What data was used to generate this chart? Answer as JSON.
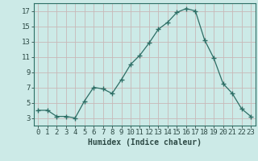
{
  "x": [
    0,
    1,
    2,
    3,
    4,
    5,
    6,
    7,
    8,
    9,
    10,
    11,
    12,
    13,
    14,
    15,
    16,
    17,
    18,
    19,
    20,
    21,
    22,
    23
  ],
  "y": [
    4.0,
    4.0,
    3.2,
    3.2,
    3.0,
    5.2,
    7.0,
    6.8,
    6.2,
    8.0,
    10.0,
    11.2,
    12.8,
    14.6,
    15.5,
    16.8,
    17.3,
    17.0,
    13.2,
    10.8,
    7.5,
    6.2,
    4.2,
    3.2
  ],
  "line_color": "#2d6e65",
  "marker": "+",
  "marker_size": 4,
  "bg_color": "#cceae7",
  "grid_color": "#c8b8b8",
  "xlabel": "Humidex (Indice chaleur)",
  "xlabel_fontsize": 7,
  "tick_fontsize": 6.5,
  "ylim": [
    2,
    18
  ],
  "xlim": [
    -0.5,
    23.5
  ],
  "yticks": [
    3,
    5,
    7,
    9,
    11,
    13,
    15,
    17
  ],
  "xticks": [
    0,
    1,
    2,
    3,
    4,
    5,
    6,
    7,
    8,
    9,
    10,
    11,
    12,
    13,
    14,
    15,
    16,
    17,
    18,
    19,
    20,
    21,
    22,
    23
  ]
}
